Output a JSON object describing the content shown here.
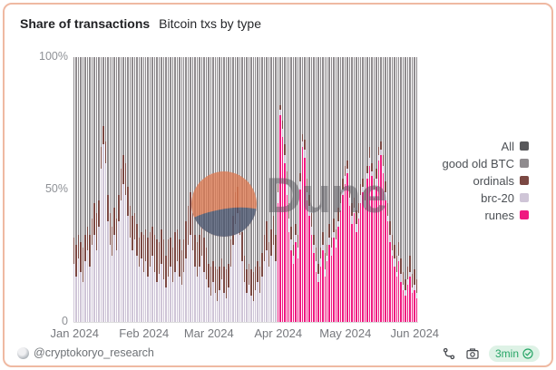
{
  "card": {
    "title": "Share of transactions",
    "subtitle": "Bitcoin txs by type"
  },
  "watermark": {
    "text": "Dune"
  },
  "footer": {
    "handle": "@cryptokoryo_research",
    "refresh_badge": "3min"
  },
  "colors": {
    "card_border": "#efb9a2",
    "badge_bg": "#def2e6",
    "badge_text": "#26a566",
    "watermark_orange": "#dd7a52",
    "watermark_navy": "#4a566f"
  },
  "chart_data": {
    "type": "bar",
    "stacked": true,
    "normalized": "percent",
    "title": "Share of transactions",
    "subtitle": "Bitcoin txs by type",
    "x_start": "2024-01-01",
    "x_end": "2024-06-02",
    "ylim": [
      0,
      100
    ],
    "grid": false,
    "legend_position": "right",
    "legend": [
      {
        "label": "All",
        "color": "#58585b"
      },
      {
        "label": "good old BTC",
        "color": "#8f8b8e"
      },
      {
        "label": "ordinals",
        "color": "#7b4843"
      },
      {
        "label": "brc-20",
        "color": "#cfc5d7"
      },
      {
        "label": "runes",
        "color": "#ef1980"
      }
    ],
    "x_ticks": [
      {
        "label": "Jan 2024",
        "day_index": 0
      },
      {
        "label": "Feb 2024",
        "day_index": 31
      },
      {
        "label": "Mar 2024",
        "day_index": 60
      },
      {
        "label": "Apr 2024",
        "day_index": 91
      },
      {
        "label": "May 2024",
        "day_index": 121
      },
      {
        "label": "Jun 2024",
        "day_index": 152
      }
    ],
    "y_ticks": [
      {
        "label": "100%",
        "value": 100
      },
      {
        "label": "50%",
        "value": 50
      },
      {
        "label": "0",
        "value": 0
      }
    ],
    "remainder_series": {
      "name": "good old BTC",
      "color": "#8f8b8e",
      "note": "fills each bar to 100%"
    },
    "series": [
      {
        "name": "runes",
        "color": "#ef1980",
        "values_by_month": [
          [
            0,
            0,
            0,
            0,
            0,
            0,
            0,
            0,
            0,
            0,
            0,
            0,
            0,
            0,
            0,
            0,
            0,
            0,
            0,
            0,
            0,
            0,
            0,
            0,
            0,
            0,
            0,
            0,
            0,
            0,
            0
          ],
          [
            0,
            0,
            0,
            0,
            0,
            0,
            0,
            0,
            0,
            0,
            0,
            0,
            0,
            0,
            0,
            0,
            0,
            0,
            0,
            0,
            0,
            0,
            0,
            0,
            0,
            0,
            0,
            0,
            0
          ],
          [
            0,
            0,
            0,
            0,
            0,
            0,
            0,
            0,
            0,
            0,
            0,
            0,
            0,
            0,
            0,
            0,
            0,
            0,
            0,
            0,
            0,
            0,
            0,
            0,
            0,
            0,
            0,
            0,
            0,
            0,
            0
          ],
          [
            45,
            78,
            70,
            60,
            48,
            34,
            27,
            22,
            30,
            24,
            50,
            66,
            62,
            46,
            40,
            33,
            26,
            19,
            15,
            21,
            27,
            17,
            23,
            29,
            25,
            32,
            28,
            36,
            42,
            48
          ],
          [
            52,
            56,
            44,
            37,
            41,
            34,
            39,
            45,
            49,
            43,
            54,
            59,
            55,
            47,
            51,
            61,
            63,
            56,
            46,
            38,
            30,
            25,
            21,
            17,
            23,
            15,
            12,
            10,
            14,
            17,
            11
          ],
          [
            12,
            9
          ]
        ]
      },
      {
        "name": "brc-20",
        "color": "#cfc5d7",
        "values_by_month": [
          [
            22,
            17,
            24,
            19,
            15,
            23,
            27,
            21,
            29,
            33,
            27,
            36,
            58,
            67,
            60,
            38,
            29,
            25,
            33,
            27,
            38,
            46,
            52,
            48,
            40,
            32,
            27,
            31,
            25,
            21,
            24
          ],
          [
            19,
            23,
            17,
            21,
            25,
            19,
            15,
            18,
            22,
            16,
            13,
            17,
            21,
            15,
            19,
            23,
            17,
            14,
            19,
            24,
            29,
            33,
            27,
            21,
            17,
            21,
            25,
            19,
            16
          ],
          [
            13,
            10,
            15,
            11,
            8,
            12,
            16,
            11,
            9,
            13,
            21,
            29,
            37,
            41,
            33,
            23,
            15,
            11,
            14,
            10,
            8,
            12,
            15,
            11,
            17,
            23,
            27,
            21,
            25,
            29,
            23
          ],
          [
            4,
            2,
            3,
            3,
            4,
            5,
            4,
            3,
            3,
            4,
            3,
            2,
            3,
            3,
            4,
            3,
            3,
            4,
            3,
            3,
            2,
            3,
            2,
            3,
            3,
            2,
            3,
            2,
            3,
            2
          ],
          [
            3,
            2,
            3,
            3,
            2,
            3,
            2,
            3,
            2,
            3,
            2,
            3,
            2,
            3,
            3,
            2,
            2,
            3,
            3,
            2,
            3,
            2,
            3,
            2,
            2,
            3,
            2,
            2,
            2,
            2,
            2
          ],
          [
            2,
            2
          ]
        ]
      },
      {
        "name": "ordinals",
        "color": "#7b4843",
        "values_by_month": [
          [
            10,
            12,
            9,
            11,
            13,
            10,
            9,
            12,
            10,
            12,
            14,
            10,
            8,
            7,
            8,
            10,
            12,
            11,
            10,
            12,
            10,
            12,
            11,
            12,
            11,
            12,
            13,
            10,
            12,
            11,
            10
          ],
          [
            14,
            12,
            15,
            13,
            11,
            14,
            16,
            12,
            13,
            15,
            12,
            14,
            11,
            13,
            15,
            12,
            14,
            13,
            12,
            14,
            15,
            16,
            14,
            12,
            13,
            12,
            11,
            13,
            12
          ],
          [
            9,
            11,
            8,
            10,
            12,
            9,
            8,
            10,
            11,
            9,
            10,
            11,
            12,
            10,
            9,
            11,
            10,
            9,
            8,
            10,
            11,
            9,
            8,
            10,
            9,
            10,
            11,
            9,
            10,
            11,
            10
          ],
          [
            3,
            2,
            3,
            4,
            5,
            6,
            5,
            4,
            4,
            5,
            3,
            3,
            4,
            5,
            4,
            5,
            4,
            5,
            4,
            4,
            5,
            6,
            4,
            5,
            4,
            5,
            4,
            5,
            4,
            4
          ],
          [
            4,
            3,
            4,
            5,
            4,
            5,
            4,
            4,
            3,
            4,
            3,
            4,
            3,
            4,
            4,
            3,
            3,
            4,
            4,
            5,
            5,
            6,
            5,
            6,
            5,
            6,
            5,
            4,
            5,
            6,
            5
          ],
          [
            6,
            5
          ]
        ]
      }
    ]
  }
}
